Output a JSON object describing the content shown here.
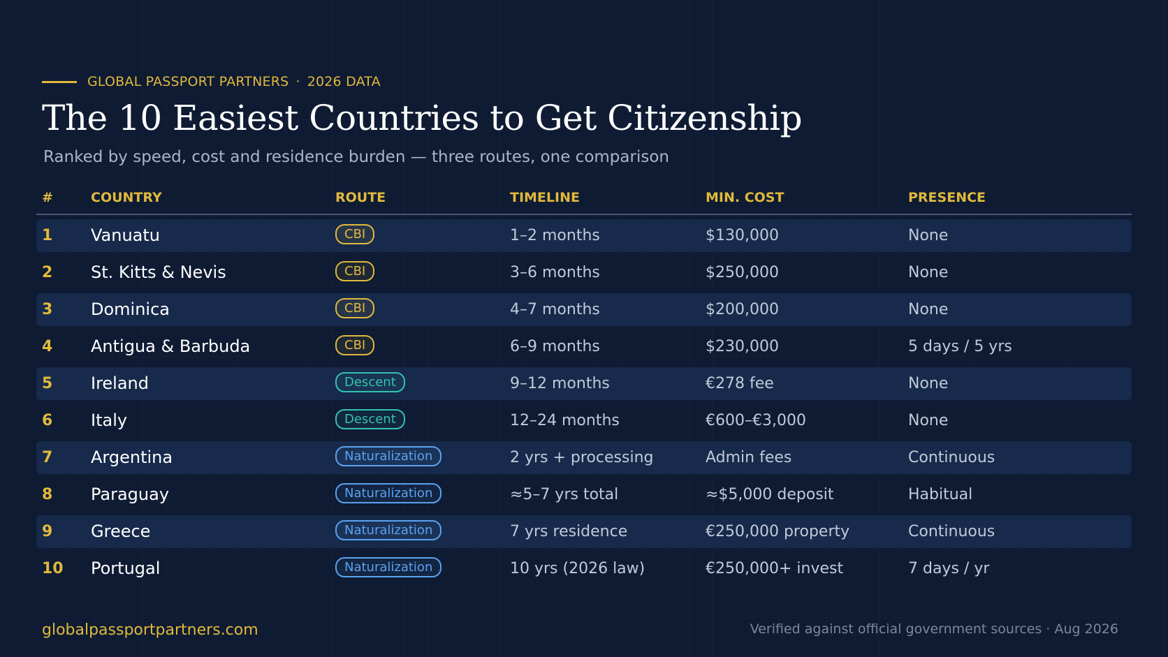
{
  "eyebrow": {
    "brand": "GLOBAL PASSPORT PARTNERS",
    "separator": "·",
    "tag": "2026 DATA"
  },
  "title": "The 10 Easiest Countries to Get Citizenship",
  "subtitle": "Ranked by speed, cost and residence burden — three routes, one comparison",
  "table": {
    "headers": [
      "#",
      "COUNTRY",
      "ROUTE",
      "TIMELINE",
      "MIN. COST",
      "PRESENCE"
    ],
    "rows": [
      {
        "rank": "1",
        "country": "Vanuatu",
        "route": "CBI",
        "timeline": "1–2 months",
        "cost": "$130,000",
        "presence": "None"
      },
      {
        "rank": "2",
        "country": "St. Kitts & Nevis",
        "route": "CBI",
        "timeline": "3–6 months",
        "cost": "$250,000",
        "presence": "None"
      },
      {
        "rank": "3",
        "country": "Dominica",
        "route": "CBI",
        "timeline": "4–7 months",
        "cost": "$200,000",
        "presence": "None"
      },
      {
        "rank": "4",
        "country": "Antigua & Barbuda",
        "route": "CBI",
        "timeline": "6–9 months",
        "cost": "$230,000",
        "presence": "5 days / 5 yrs"
      },
      {
        "rank": "5",
        "country": "Ireland",
        "route": "Descent",
        "timeline": "9–12 months",
        "cost": "€278 fee",
        "presence": "None"
      },
      {
        "rank": "6",
        "country": "Italy",
        "route": "Descent",
        "timeline": "12–24 months",
        "cost": "€600–€3,000",
        "presence": "None"
      },
      {
        "rank": "7",
        "country": "Argentina",
        "route": "Naturalization",
        "timeline": "2 yrs + processing",
        "cost": "Admin fees",
        "presence": "Continuous"
      },
      {
        "rank": "8",
        "country": "Paraguay",
        "route": "Naturalization",
        "timeline": "≈5–7 yrs total",
        "cost": "≈$5,000 deposit",
        "presence": "Habitual"
      },
      {
        "rank": "9",
        "country": "Greece",
        "route": "Naturalization",
        "timeline": "7 yrs residence",
        "cost": "€250,000 property",
        "presence": "Continuous"
      },
      {
        "rank": "10",
        "country": "Portugal",
        "route": "Naturalization",
        "timeline": "10 yrs (2026 law)",
        "cost": "€250,000+ invest",
        "presence": "7 days / yr"
      }
    ]
  },
  "route_colors": {
    "CBI": "#e1b93b",
    "Descent": "#35c2ae",
    "Naturalization": "#5aa2f0"
  },
  "footer": {
    "website": "globalpassportpartners.com",
    "note": "Verified against official government sources · Aug 2026"
  }
}
